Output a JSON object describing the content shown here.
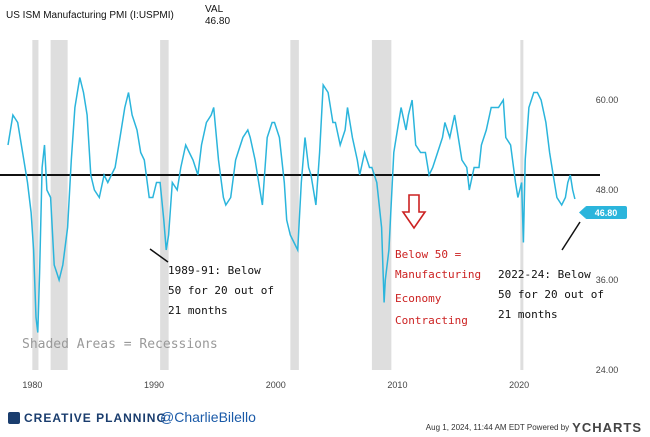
{
  "header": {
    "series_name": "US ISM Manufacturing PMI (I:USPMI)",
    "val_label": "VAL",
    "val_value": "46.80"
  },
  "chart_data": {
    "type": "line",
    "series": [
      {
        "values": [
          [
            1978.0,
            54
          ],
          [
            1978.4,
            58
          ],
          [
            1978.8,
            57
          ],
          [
            1979.2,
            53
          ],
          [
            1979.6,
            49
          ],
          [
            1979.9,
            45
          ],
          [
            1980.1,
            40
          ],
          [
            1980.3,
            31
          ],
          [
            1980.45,
            29
          ],
          [
            1980.6,
            37
          ],
          [
            1980.8,
            51
          ],
          [
            1981.0,
            54
          ],
          [
            1981.2,
            48
          ],
          [
            1981.5,
            47
          ],
          [
            1981.8,
            38
          ],
          [
            1982.0,
            37
          ],
          [
            1982.2,
            36
          ],
          [
            1982.5,
            38
          ],
          [
            1982.9,
            43
          ],
          [
            1983.2,
            52
          ],
          [
            1983.5,
            59
          ],
          [
            1983.9,
            63
          ],
          [
            1984.2,
            61
          ],
          [
            1984.5,
            58
          ],
          [
            1984.8,
            50
          ],
          [
            1985.1,
            48
          ],
          [
            1985.5,
            47
          ],
          [
            1985.9,
            50
          ],
          [
            1986.2,
            49
          ],
          [
            1986.5,
            50
          ],
          [
            1986.8,
            51
          ],
          [
            1987.2,
            55
          ],
          [
            1987.6,
            59
          ],
          [
            1987.9,
            61
          ],
          [
            1988.2,
            58
          ],
          [
            1988.6,
            56
          ],
          [
            1988.9,
            53
          ],
          [
            1989.2,
            52
          ],
          [
            1989.6,
            47
          ],
          [
            1989.9,
            47
          ],
          [
            1990.2,
            49
          ],
          [
            1990.5,
            49
          ],
          [
            1990.8,
            44
          ],
          [
            1991.0,
            40
          ],
          [
            1991.2,
            42
          ],
          [
            1991.5,
            49
          ],
          [
            1991.9,
            48
          ],
          [
            1992.2,
            51
          ],
          [
            1992.6,
            54
          ],
          [
            1992.9,
            53
          ],
          [
            1993.2,
            52
          ],
          [
            1993.6,
            50
          ],
          [
            1993.9,
            54
          ],
          [
            1994.3,
            57
          ],
          [
            1994.7,
            58
          ],
          [
            1994.9,
            59
          ],
          [
            1995.3,
            52
          ],
          [
            1995.7,
            47
          ],
          [
            1995.9,
            46
          ],
          [
            1996.3,
            47
          ],
          [
            1996.7,
            52
          ],
          [
            1996.9,
            53
          ],
          [
            1997.3,
            55
          ],
          [
            1997.7,
            56
          ],
          [
            1997.9,
            55
          ],
          [
            1998.3,
            52
          ],
          [
            1998.7,
            48
          ],
          [
            1998.9,
            46
          ],
          [
            1999.3,
            55
          ],
          [
            1999.7,
            57
          ],
          [
            1999.9,
            57
          ],
          [
            2000.3,
            55
          ],
          [
            2000.7,
            49
          ],
          [
            2000.9,
            44
          ],
          [
            2001.2,
            42
          ],
          [
            2001.5,
            41
          ],
          [
            2001.8,
            40
          ],
          [
            2002.1,
            49
          ],
          [
            2002.4,
            55
          ],
          [
            2002.7,
            51
          ],
          [
            2002.9,
            50
          ],
          [
            2003.3,
            46
          ],
          [
            2003.6,
            53
          ],
          [
            2003.9,
            62
          ],
          [
            2004.3,
            61
          ],
          [
            2004.7,
            57
          ],
          [
            2004.9,
            57
          ],
          [
            2005.3,
            54
          ],
          [
            2005.7,
            56
          ],
          [
            2005.9,
            59
          ],
          [
            2006.3,
            55
          ],
          [
            2006.7,
            52
          ],
          [
            2006.9,
            50
          ],
          [
            2007.3,
            53
          ],
          [
            2007.7,
            51
          ],
          [
            2007.9,
            51
          ],
          [
            2008.3,
            49
          ],
          [
            2008.7,
            43
          ],
          [
            2008.9,
            33
          ],
          [
            2009.0,
            36
          ],
          [
            2009.3,
            40
          ],
          [
            2009.7,
            53
          ],
          [
            2009.9,
            55
          ],
          [
            2010.3,
            59
          ],
          [
            2010.7,
            56
          ],
          [
            2010.9,
            58
          ],
          [
            2011.2,
            60
          ],
          [
            2011.5,
            54
          ],
          [
            2011.9,
            53
          ],
          [
            2012.3,
            53
          ],
          [
            2012.6,
            50
          ],
          [
            2012.9,
            51
          ],
          [
            2013.3,
            53
          ],
          [
            2013.7,
            55
          ],
          [
            2013.9,
            57
          ],
          [
            2014.3,
            55
          ],
          [
            2014.7,
            58
          ],
          [
            2014.9,
            56
          ],
          [
            2015.3,
            52
          ],
          [
            2015.7,
            51
          ],
          [
            2015.9,
            48
          ],
          [
            2016.3,
            51
          ],
          [
            2016.7,
            51
          ],
          [
            2016.9,
            54
          ],
          [
            2017.3,
            56
          ],
          [
            2017.7,
            59
          ],
          [
            2017.9,
            59
          ],
          [
            2018.3,
            59
          ],
          [
            2018.7,
            60
          ],
          [
            2018.9,
            55
          ],
          [
            2019.3,
            54
          ],
          [
            2019.7,
            49
          ],
          [
            2019.9,
            47
          ],
          [
            2020.2,
            49
          ],
          [
            2020.35,
            41
          ],
          [
            2020.5,
            52
          ],
          [
            2020.8,
            59
          ],
          [
            2021.2,
            61
          ],
          [
            2021.5,
            61
          ],
          [
            2021.8,
            60
          ],
          [
            2022.2,
            57
          ],
          [
            2022.5,
            53
          ],
          [
            2022.8,
            50
          ],
          [
            2023.1,
            47
          ],
          [
            2023.5,
            46
          ],
          [
            2023.8,
            47
          ],
          [
            2024.0,
            49
          ],
          [
            2024.2,
            50
          ],
          [
            2024.4,
            48
          ],
          [
            2024.58,
            46.8
          ]
        ]
      }
    ],
    "xlim": [
      1978,
      2025
    ],
    "ylim": [
      24,
      68
    ],
    "x_ticks": [
      1980,
      1990,
      2000,
      2010,
      2020
    ],
    "x_tick_labels": [
      "1980",
      "1990",
      "2000",
      "2010",
      "2020"
    ],
    "y_ticks": [
      24,
      36,
      48,
      60
    ],
    "y_tick_labels": [
      "24.00",
      "36.00",
      "48.00",
      "60.00"
    ],
    "reference_line": 50,
    "recessions": [
      [
        1980.0,
        1980.5
      ],
      [
        1981.5,
        1982.9
      ],
      [
        1990.5,
        1991.2
      ],
      [
        2001.2,
        2001.9
      ],
      [
        2007.9,
        2009.5
      ],
      [
        2020.1,
        2020.3
      ]
    ],
    "last_value_label": "46.80",
    "grid": false,
    "line_color": "#2bb5dc",
    "annotations": {
      "early_90s": [
        "1989-91: Below",
        "50 for 20 out of",
        "21 months"
      ],
      "recent": [
        "2022-24: Below",
        "50 for 20 out of",
        "21 months"
      ],
      "contracting": [
        "Below 50 =",
        "Manufacturing",
        "Economy",
        "Contracting"
      ],
      "shaded": "Shaded Areas = Recessions"
    }
  },
  "footer": {
    "brand": "CREATIVE PLANNING",
    "handle": "@CharlieBilello",
    "timestamp": "Aug 1, 2024, 11:44 AM EDT Powered by",
    "ycharts": "YCHARTS"
  },
  "colors": {
    "recession": "#dedede",
    "annotation_red": "#cc2222",
    "badge": "#2bb5dc"
  }
}
